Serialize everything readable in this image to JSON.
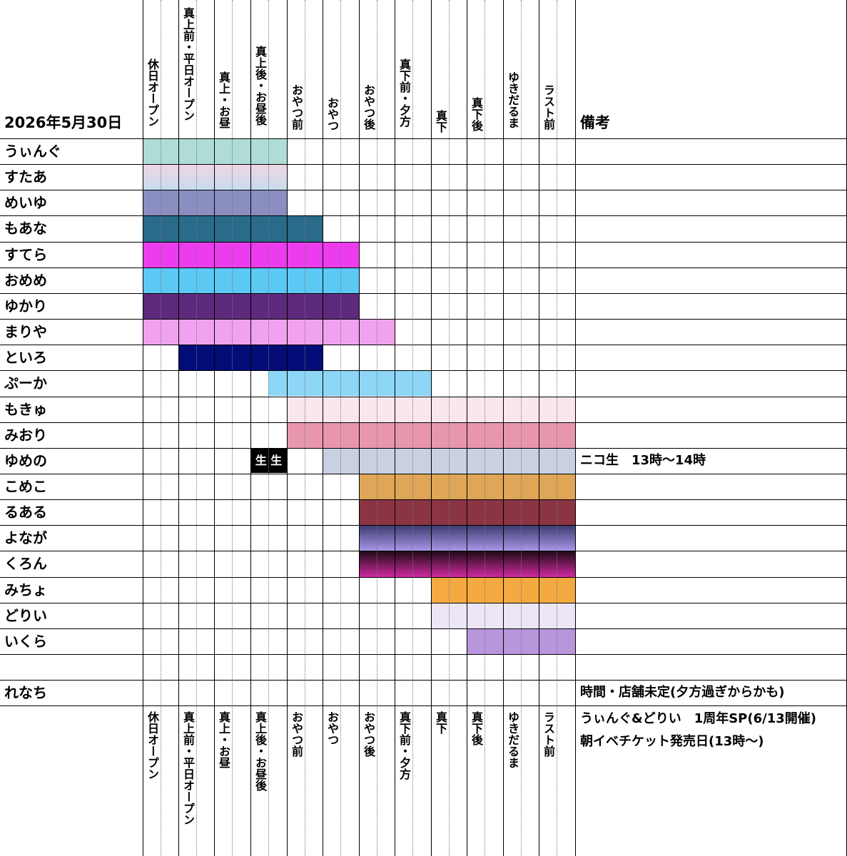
{
  "date_title": "2026年5月30日",
  "remarks_header": "備考",
  "columns": [
    "休日オープン",
    "真上前・平日オープン",
    "真上・お昼",
    "真上後・お昼後",
    "おやつ前",
    "おやつ",
    "おやつ後",
    "真下前・夕方",
    "真下",
    "真下後",
    "ゆきだるま",
    "ラスト前"
  ],
  "rows": [
    {
      "name": "うぃんぐ",
      "start": 0,
      "end": 3,
      "color": "#b0dcd8",
      "remark": ""
    },
    {
      "name": "すたあ",
      "start": 0,
      "end": 3,
      "gradient": [
        "#f0d6e2",
        "#c6dcee"
      ],
      "remark": ""
    },
    {
      "name": "めいゆ",
      "start": 0,
      "end": 3,
      "color": "#8a8ec0",
      "remark": ""
    },
    {
      "name": "もあな",
      "start": 0,
      "end": 4,
      "color": "#2a6a8a",
      "remark": ""
    },
    {
      "name": "すてら",
      "start": 0,
      "end": 5,
      "color": "#ec3ced",
      "remark": ""
    },
    {
      "name": "おめめ",
      "start": 0,
      "end": 5,
      "color": "#5cc8f4",
      "remark": ""
    },
    {
      "name": "ゆかり",
      "start": 0,
      "end": 5,
      "color": "#5e2a7c",
      "remark": ""
    },
    {
      "name": "まりや",
      "start": 0,
      "end": 6,
      "color": "#f0a2ee",
      "remark": ""
    },
    {
      "name": "といろ",
      "start": 1,
      "end": 4,
      "color": "#040c78",
      "remark": ""
    },
    {
      "name": "ぷーか",
      "start": 3,
      "end": 7,
      "color": "#8ed6f6",
      "partial_first": true,
      "remark": ""
    },
    {
      "name": "もきゅ",
      "start": 4,
      "end": 11,
      "color": "#fbe6ee",
      "remark": ""
    },
    {
      "name": "みおり",
      "start": 4,
      "end": 11,
      "color": "#e896ae",
      "remark": ""
    },
    {
      "name": "ゆめの",
      "start": 5,
      "end": 11,
      "color": "#c8d0e2",
      "remark": "ニコ生　13時〜14時",
      "live": "生 生"
    },
    {
      "name": "こめこ",
      "start": 6,
      "end": 11,
      "color": "#dea656",
      "remark": ""
    },
    {
      "name": "るある",
      "start": 6,
      "end": 11,
      "color": "#8a3444",
      "remark": ""
    },
    {
      "name": "よなが",
      "start": 6,
      "end": 11,
      "gradient": [
        "#3a3a6e",
        "#a896e6"
      ],
      "remark": ""
    },
    {
      "name": "くろん",
      "start": 6,
      "end": 11,
      "gradient": [
        "#1a0a14",
        "#d02aa0"
      ],
      "remark": ""
    },
    {
      "name": "みちょ",
      "start": 8,
      "end": 11,
      "color": "#f4aa40",
      "remark": ""
    },
    {
      "name": "どりい",
      "start": 8,
      "end": 11,
      "color": "#ece6f6",
      "remark": ""
    },
    {
      "name": "いくら",
      "start": 9,
      "end": 11,
      "color": "#b896dc",
      "remark": ""
    },
    {
      "name": "",
      "start": -1,
      "end": -1,
      "color": "",
      "remark": ""
    },
    {
      "name": "れなち",
      "start": -1,
      "end": -1,
      "color": "",
      "remark": "時間・店舗未定(夕方過ぎからかも)"
    }
  ],
  "footer_notes": [
    "うぃんぐ&どりい　1周年SP(6/13開催)",
    "朝イベチケット発売日(13時〜)"
  ]
}
